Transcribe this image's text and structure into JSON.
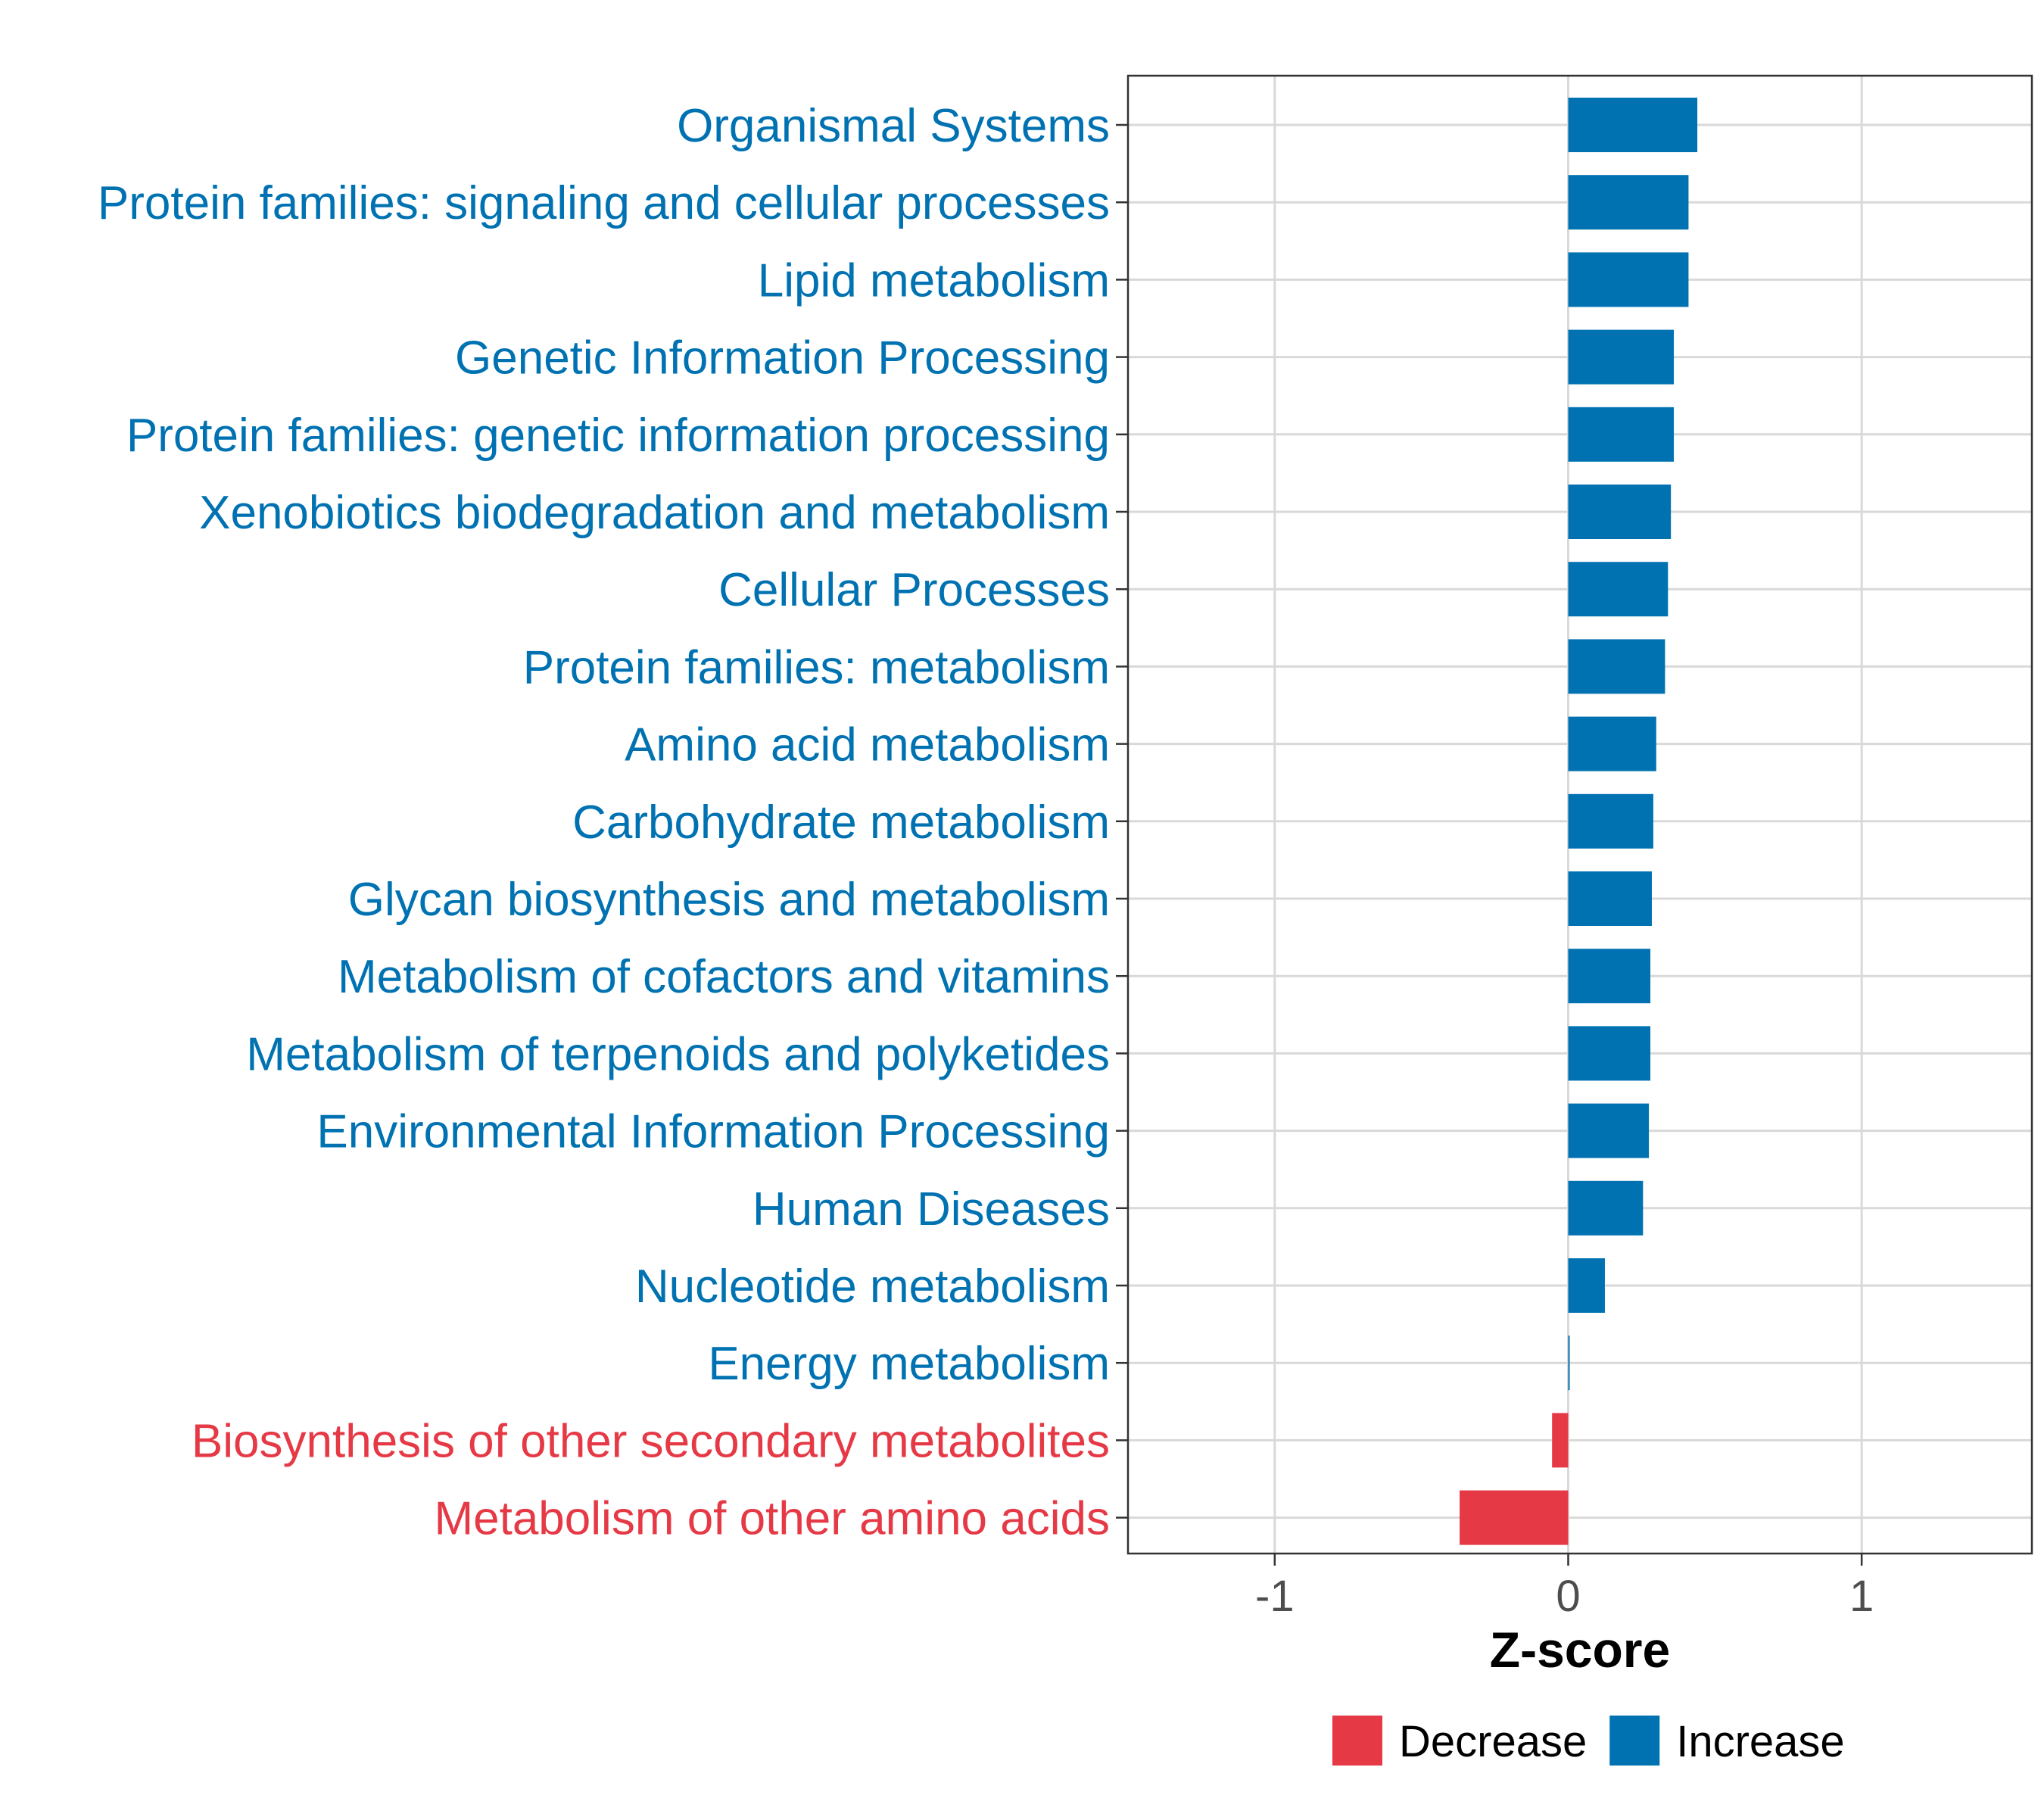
{
  "chart_data": {
    "type": "bar",
    "orientation": "horizontal",
    "title": "",
    "xlabel": "Z-score",
    "ylabel": "",
    "xlim": [
      -1.5,
      1.58
    ],
    "xticks": [
      -1,
      0,
      1
    ],
    "xtick_labels": [
      "-1",
      "0",
      "1"
    ],
    "grid": true,
    "legend_position": "bottom",
    "legend": [
      {
        "label": "Decrease",
        "color": "#E63946"
      },
      {
        "label": "Increase",
        "color": "#0072B2"
      }
    ],
    "categories": [
      "Organismal Systems",
      "Protein families: signaling and cellular processes",
      "Lipid metabolism",
      "Genetic Information Processing",
      "Protein families: genetic information processing",
      "Xenobiotics biodegradation and metabolism",
      "Cellular Processes",
      "Protein families: metabolism",
      "Amino acid metabolism",
      "Carbohydrate metabolism",
      "Glycan biosynthesis and metabolism",
      "Metabolism of cofactors and vitamins",
      "Metabolism of terpenoids and polyketides",
      "Environmental Information Processing",
      "Human Diseases",
      "Nucleotide metabolism",
      "Energy metabolism",
      "Biosynthesis of other secondary metabolites",
      "Metabolism of other amino acids"
    ],
    "values": [
      0.44,
      0.41,
      0.41,
      0.36,
      0.36,
      0.35,
      0.34,
      0.33,
      0.3,
      0.29,
      0.285,
      0.28,
      0.28,
      0.275,
      0.255,
      0.125,
      0.005,
      -0.055,
      -0.37
    ],
    "groups": [
      "Increase",
      "Increase",
      "Increase",
      "Increase",
      "Increase",
      "Increase",
      "Increase",
      "Increase",
      "Increase",
      "Increase",
      "Increase",
      "Increase",
      "Increase",
      "Increase",
      "Increase",
      "Increase",
      "Increase",
      "Decrease",
      "Decrease"
    ]
  }
}
